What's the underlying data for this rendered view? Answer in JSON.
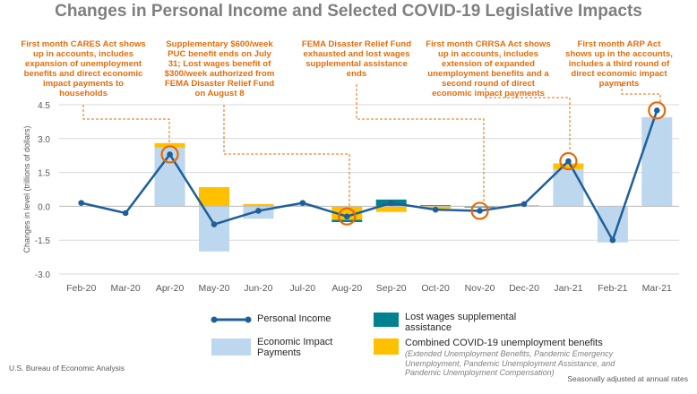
{
  "chart_data": {
    "type": "bar+line",
    "title": "Changes in Personal Income and Selected COVID-19 Legislative Impacts",
    "ylabel": "Changes in level (trillions of dollars)",
    "ylim": [
      -3.0,
      4.5
    ],
    "yticks": [
      "4.5",
      "3.0",
      "1.5",
      "0.0",
      "-1.5",
      "-3.0"
    ],
    "yticks_values": [
      4.5,
      3.0,
      1.5,
      0.0,
      -1.5,
      -3.0
    ],
    "categories": [
      "Feb-20",
      "Mar-20",
      "Apr-20",
      "May-20",
      "Jun-20",
      "Jul-20",
      "Aug-20",
      "Sep-20",
      "Oct-20",
      "Nov-20",
      "Dec-20",
      "Jan-21",
      "Feb-21",
      "Mar-21"
    ],
    "series": [
      {
        "name": "Economic Impact Payments",
        "kind": "bar",
        "color": "#bdd7ee",
        "values": [
          0,
          0,
          2.6,
          -2.0,
          -0.55,
          0,
          0,
          0,
          0,
          0,
          0,
          1.65,
          -1.6,
          3.95
        ]
      },
      {
        "name": "Combined COVID-19 unemployment benefits",
        "kind": "bar",
        "color": "#ffc000",
        "values": [
          0,
          0,
          0.2,
          0.85,
          0.1,
          0.05,
          -0.6,
          -0.25,
          -0.1,
          0,
          0.05,
          0.25,
          0,
          0
        ]
      },
      {
        "name": "Lost wages supplemental assistance",
        "kind": "bar",
        "color": "#00838f",
        "values": [
          0,
          0,
          0,
          0,
          0,
          0,
          -0.1,
          0.3,
          0.05,
          -0.05,
          0,
          0,
          0,
          0
        ]
      },
      {
        "name": "Personal Income",
        "kind": "line",
        "color": "#1f5f99",
        "values": [
          0.15,
          -0.3,
          2.3,
          -0.8,
          -0.2,
          0.15,
          -0.45,
          0.15,
          -0.15,
          -0.2,
          0.1,
          2.0,
          -1.5,
          4.25
        ]
      }
    ],
    "highlighted_points": [
      "Apr-20",
      "Aug-20",
      "Nov-20",
      "Jan-21",
      "Mar-21"
    ],
    "annotations": [
      {
        "text": "First month CARES Act shows up in accounts, includes expansion of unemployment benefits and direct economic impact payments to households",
        "target": "Apr-20"
      },
      {
        "text": "Supplementary $600/week PUC benefit ends on July 31; Lost wages benefit of $300/week authorized from FEMA Disaster Relief Fund on August 8",
        "target": "Aug-20"
      },
      {
        "text": "FEMA Disaster Relief Fund exhausted and lost wages supplemental assistance ends",
        "target": "Nov-20"
      },
      {
        "text": "First month CRRSA Act shows up in accounts, includes extension of expanded unemployment benefits and a second round of direct economic impact payments",
        "target": "Jan-21"
      },
      {
        "text": "First month ARP Act shows up in the accounts, includes a third round of direct economic impact payments",
        "target": "Mar-21"
      }
    ],
    "legend": {
      "personal_income": "Personal Income",
      "eip": "Economic Impact Payments",
      "lost_wages": "Lost wages supplemental assistance",
      "unemployment": "Combined COVID-19 unemployment benefits",
      "unemployment_note": "(Extended Unemployment Benefits, Pandemic Emergency Unemployment, Pandemic Unemployment Assistance, and Pandemic Unemployment Compensation)"
    },
    "source": "U.S. Bureau of Economic Analysis",
    "note": "Seasonally adjusted at annual rates",
    "colors": {
      "annotation": "#e46c0a",
      "line": "#1f5f99"
    }
  }
}
